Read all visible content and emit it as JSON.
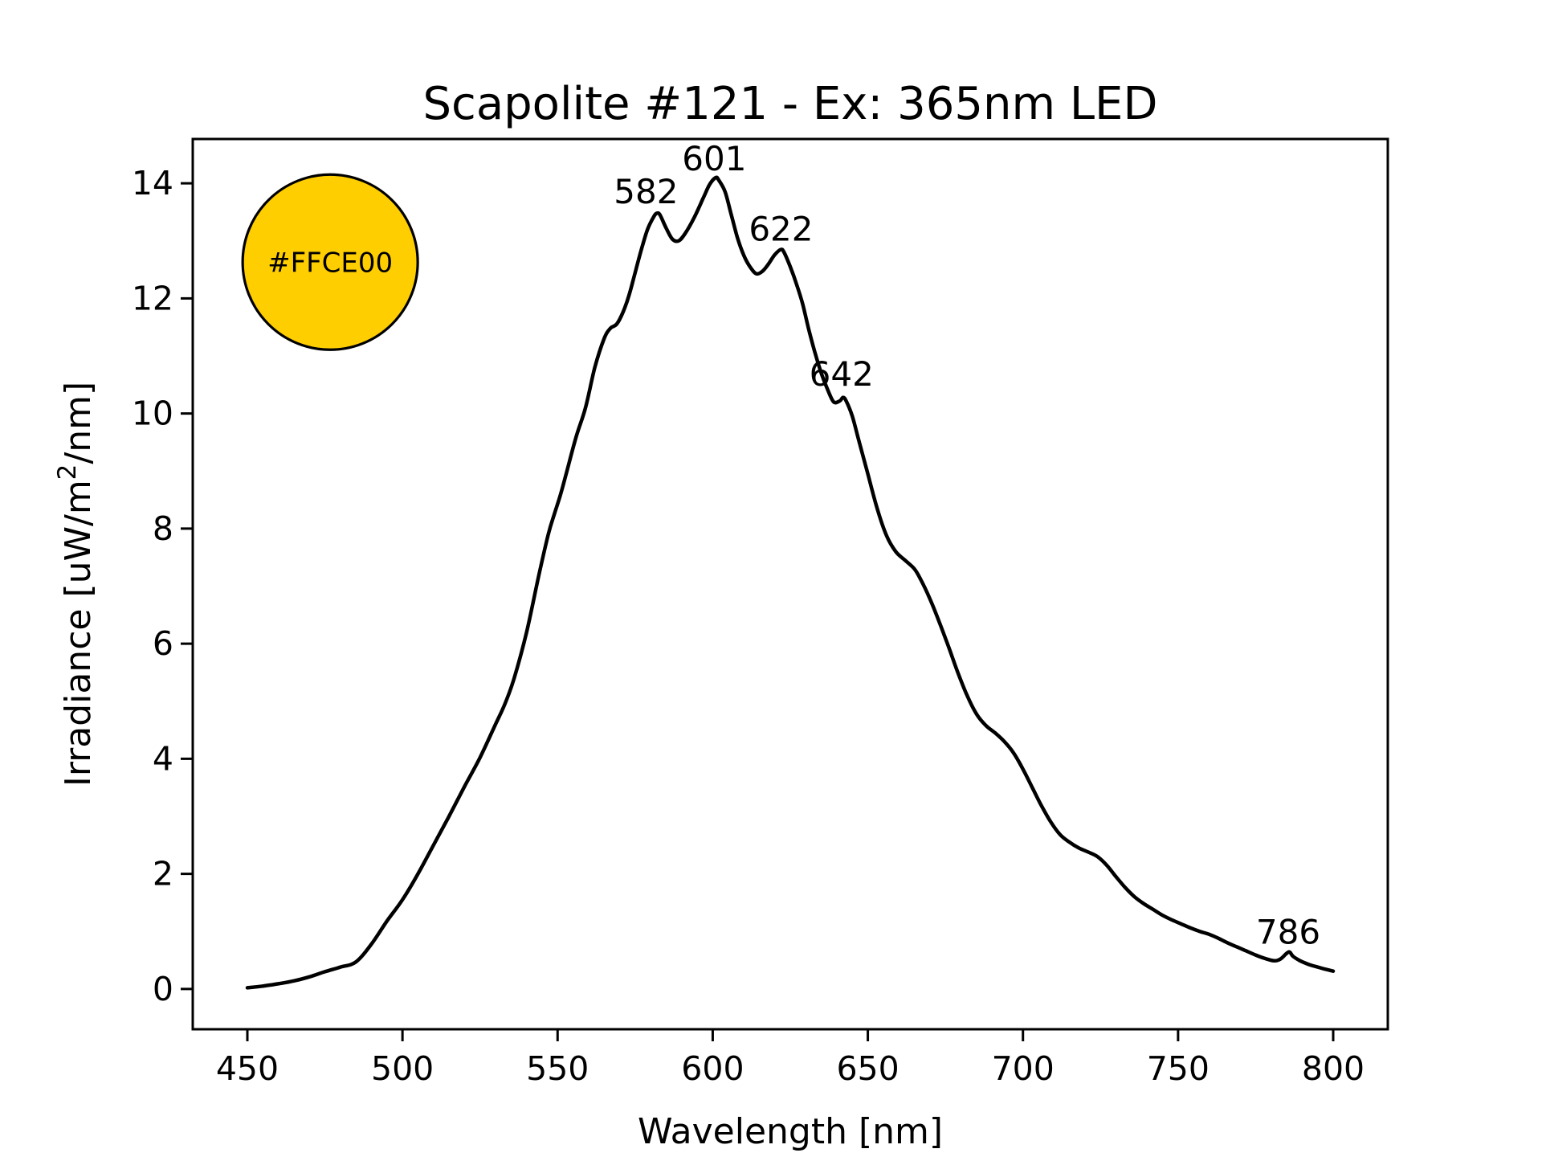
{
  "figure": {
    "background": "#ffffff"
  },
  "chart_data": {
    "type": "line",
    "title": "Scapolite #121 - Ex: 365nm LED",
    "xlabel": "Wavelength [nm]",
    "ylabel": "Irradiance [uW/m²/nm]",
    "ylabel_parts": [
      "Irradiance [uW/m",
      "2",
      "/nm]"
    ],
    "xlim": [
      432.4,
      817.6
    ],
    "ylim": [
      -0.7,
      14.77
    ],
    "xticks": [
      450,
      500,
      550,
      600,
      650,
      700,
      750,
      800
    ],
    "yticks": [
      0,
      2,
      4,
      6,
      8,
      10,
      12,
      14
    ],
    "grid": false,
    "legend": null,
    "line_color": "#000000",
    "line_width": 4.5,
    "series": [
      {
        "name": "emission-spectrum",
        "points": [
          [
            450,
            0.02
          ],
          [
            455,
            0.05
          ],
          [
            460,
            0.09
          ],
          [
            465,
            0.14
          ],
          [
            470,
            0.21
          ],
          [
            475,
            0.3
          ],
          [
            480,
            0.38
          ],
          [
            485,
            0.47
          ],
          [
            490,
            0.78
          ],
          [
            495,
            1.18
          ],
          [
            500,
            1.55
          ],
          [
            505,
            2.0
          ],
          [
            510,
            2.5
          ],
          [
            515,
            3.0
          ],
          [
            520,
            3.52
          ],
          [
            525,
            4.02
          ],
          [
            530,
            4.6
          ],
          [
            533,
            4.95
          ],
          [
            536,
            5.4
          ],
          [
            540,
            6.2
          ],
          [
            544,
            7.2
          ],
          [
            547,
            7.9
          ],
          [
            549,
            8.26
          ],
          [
            551,
            8.6
          ],
          [
            553,
            9.0
          ],
          [
            556,
            9.6
          ],
          [
            559,
            10.1
          ],
          [
            562,
            10.8
          ],
          [
            565,
            11.3
          ],
          [
            567,
            11.48
          ],
          [
            569,
            11.55
          ],
          [
            571,
            11.75
          ],
          [
            573,
            12.05
          ],
          [
            575,
            12.45
          ],
          [
            577,
            12.85
          ],
          [
            579,
            13.2
          ],
          [
            581,
            13.42
          ],
          [
            582,
            13.48
          ],
          [
            583,
            13.45
          ],
          [
            585,
            13.22
          ],
          [
            587,
            13.03
          ],
          [
            589,
            13.0
          ],
          [
            591,
            13.12
          ],
          [
            594,
            13.4
          ],
          [
            597,
            13.75
          ],
          [
            599,
            13.98
          ],
          [
            601,
            14.1
          ],
          [
            602,
            14.05
          ],
          [
            604,
            13.85
          ],
          [
            606,
            13.45
          ],
          [
            608,
            13.05
          ],
          [
            610,
            12.75
          ],
          [
            612,
            12.55
          ],
          [
            614,
            12.43
          ],
          [
            616,
            12.47
          ],
          [
            618,
            12.6
          ],
          [
            620,
            12.76
          ],
          [
            622,
            12.85
          ],
          [
            623,
            12.8
          ],
          [
            625,
            12.55
          ],
          [
            627,
            12.25
          ],
          [
            629,
            11.9
          ],
          [
            631,
            11.45
          ],
          [
            633,
            11.05
          ],
          [
            635,
            10.7
          ],
          [
            637,
            10.42
          ],
          [
            639,
            10.2
          ],
          [
            641,
            10.22
          ],
          [
            642,
            10.28
          ],
          [
            643,
            10.22
          ],
          [
            645,
            9.95
          ],
          [
            647,
            9.55
          ],
          [
            650,
            8.95
          ],
          [
            653,
            8.35
          ],
          [
            656,
            7.88
          ],
          [
            659,
            7.6
          ],
          [
            662,
            7.45
          ],
          [
            665,
            7.3
          ],
          [
            667,
            7.12
          ],
          [
            670,
            6.78
          ],
          [
            673,
            6.38
          ],
          [
            676,
            5.95
          ],
          [
            679,
            5.5
          ],
          [
            682,
            5.1
          ],
          [
            685,
            4.78
          ],
          [
            688,
            4.58
          ],
          [
            691,
            4.45
          ],
          [
            694,
            4.3
          ],
          [
            697,
            4.1
          ],
          [
            700,
            3.82
          ],
          [
            703,
            3.5
          ],
          [
            706,
            3.18
          ],
          [
            709,
            2.9
          ],
          [
            712,
            2.68
          ],
          [
            715,
            2.55
          ],
          [
            718,
            2.45
          ],
          [
            721,
            2.38
          ],
          [
            724,
            2.3
          ],
          [
            727,
            2.15
          ],
          [
            730,
            1.95
          ],
          [
            733,
            1.76
          ],
          [
            736,
            1.6
          ],
          [
            739,
            1.48
          ],
          [
            742,
            1.38
          ],
          [
            745,
            1.28
          ],
          [
            748,
            1.2
          ],
          [
            751,
            1.13
          ],
          [
            754,
            1.06
          ],
          [
            757,
            1.0
          ],
          [
            760,
            0.95
          ],
          [
            763,
            0.88
          ],
          [
            766,
            0.8
          ],
          [
            769,
            0.73
          ],
          [
            772,
            0.66
          ],
          [
            775,
            0.59
          ],
          [
            778,
            0.53
          ],
          [
            781,
            0.49
          ],
          [
            783,
            0.52
          ],
          [
            785,
            0.62
          ],
          [
            786,
            0.64
          ],
          [
            787,
            0.57
          ],
          [
            789,
            0.5
          ],
          [
            791,
            0.45
          ],
          [
            793,
            0.41
          ],
          [
            795,
            0.38
          ],
          [
            797,
            0.35
          ],
          [
            800,
            0.31
          ]
        ]
      }
    ],
    "annotations": [
      {
        "label": "582",
        "x": 578.5,
        "y": 13.85
      },
      {
        "label": "601",
        "x": 600.5,
        "y": 14.42
      },
      {
        "label": "622",
        "x": 622.0,
        "y": 13.2
      },
      {
        "label": "642",
        "x": 641.5,
        "y": 10.68
      },
      {
        "label": "786",
        "x": 785.5,
        "y": 0.98
      }
    ],
    "swatch": {
      "label": "#FFCE00",
      "fill": "#FFCE00",
      "edge_color": "#000000",
      "x": 476.7,
      "y": 12.63,
      "radius_px": 109
    }
  }
}
